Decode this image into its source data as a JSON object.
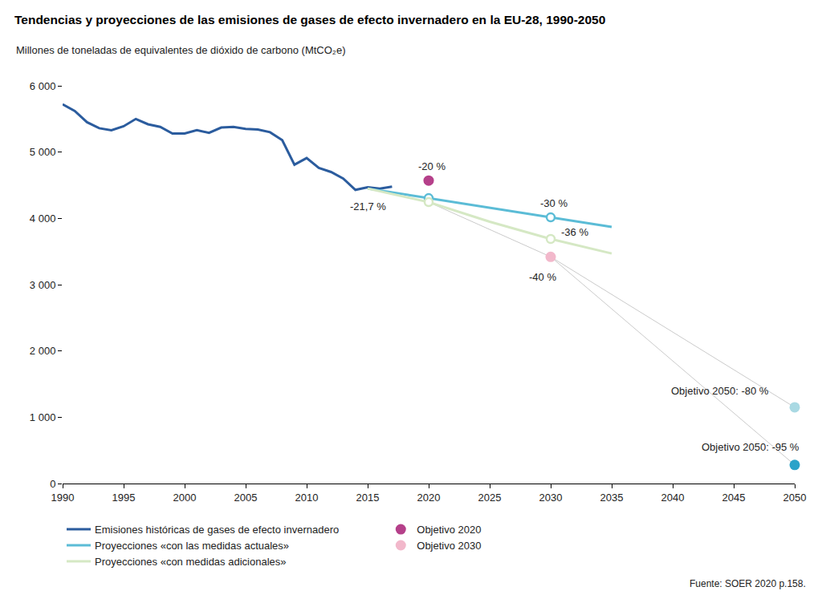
{
  "chart_data": {
    "type": "line",
    "title": "Tendencias y proyecciones de las emisiones de gases de efecto invernadero en la EU-28, 1990-2050",
    "subtitle": "Millones de toneladas de equivalentes de dióxido de carbono (MtCO₂e)",
    "source": "Fuente: SOER 2020 p.158.",
    "xlim": [
      1990,
      2050
    ],
    "xticks": [
      1990,
      1995,
      2000,
      2005,
      2010,
      2015,
      2020,
      2025,
      2030,
      2035,
      2040,
      2045,
      2050
    ],
    "ylim": [
      0,
      6000
    ],
    "yticks": [
      0,
      {
        "value": 1000,
        "label": "1 000"
      },
      {
        "value": 2000,
        "label": "2 000"
      },
      {
        "value": 3000,
        "label": "3 000"
      },
      {
        "value": 4000,
        "label": "4 000"
      },
      {
        "value": 5000,
        "label": "5 000"
      },
      {
        "value": 6000,
        "label": "6 000"
      }
    ],
    "grid": false,
    "legend": "bottom",
    "series": [
      {
        "name": "Emisiones históricas de gases de efecto invernadero",
        "type": "line",
        "color": "#2b5c9e",
        "x": [
          1990,
          1991,
          1992,
          1993,
          1994,
          1995,
          1996,
          1997,
          1998,
          1999,
          2000,
          2001,
          2002,
          2003,
          2004,
          2005,
          2006,
          2007,
          2008,
          2009,
          2010,
          2011,
          2012,
          2013,
          2014,
          2015,
          2016,
          2017
        ],
        "values": [
          5720,
          5620,
          5450,
          5360,
          5330,
          5390,
          5500,
          5420,
          5380,
          5280,
          5280,
          5330,
          5290,
          5370,
          5380,
          5350,
          5340,
          5300,
          5180,
          4810,
          4910,
          4760,
          4700,
          4600,
          4430,
          4470,
          4450,
          4480
        ]
      },
      {
        "name": "Proyecciones «con las medidas actuales»",
        "type": "line",
        "color": "#5bbcd6",
        "x": [
          2015,
          2020,
          2025,
          2030,
          2035
        ],
        "values": [
          4450,
          4305,
          4160,
          4015,
          3870
        ]
      },
      {
        "name": "Proyecciones «con medidas adicionales»",
        "type": "line",
        "color": "#d5e8c4",
        "x": [
          2015,
          2020,
          2025,
          2030,
          2035
        ],
        "values": [
          4450,
          4245,
          3950,
          3690,
          3470
        ]
      },
      {
        "name": "Objetivo 2020",
        "type": "scatter",
        "color": "#b5408a",
        "marker": "circle",
        "x": [
          2020
        ],
        "values": [
          4570
        ]
      },
      {
        "name": "Objetivo 2030",
        "type": "scatter",
        "color": "#f2b8cb",
        "marker": "circle",
        "x": [
          2030
        ],
        "values": [
          3420
        ]
      },
      {
        "type": "line",
        "color": "#c4c4c4",
        "x": [
          2020,
          2030,
          2050
        ],
        "values": [
          4245,
          3420,
          1150
        ]
      },
      {
        "type": "line",
        "color": "#c4c4c4",
        "x": [
          2030,
          2050
        ],
        "values": [
          3420,
          280
        ]
      }
    ],
    "markers": [
      {
        "x": 2020,
        "y": 4305,
        "color": "#5bbcd6",
        "marker": "open-circle"
      },
      {
        "x": 2030,
        "y": 4015,
        "color": "#5bbcd6",
        "marker": "open-circle"
      },
      {
        "x": 2020,
        "y": 4245,
        "color": "#d5e8c4",
        "marker": "open-circle"
      },
      {
        "x": 2030,
        "y": 3690,
        "color": "#d5e8c4",
        "marker": "open-circle"
      },
      {
        "x": 2050,
        "y": 1150,
        "color": "#a9d9e3",
        "marker": "circle"
      },
      {
        "x": 2050,
        "y": 280,
        "color": "#2aa3c9",
        "marker": "circle"
      }
    ],
    "annotations": [
      {
        "x": 2015,
        "y": 4450,
        "text": "-21,7 %"
      },
      {
        "x": 2020,
        "y": 4570,
        "text": "-20 %"
      },
      {
        "x": 2030,
        "y": 4015,
        "text": "-30 %"
      },
      {
        "x": 2030,
        "y": 3690,
        "text": "-36 %"
      },
      {
        "x": 2030,
        "y": 3420,
        "text": "-40 %"
      },
      {
        "x": 2050,
        "y": 1150,
        "text": "Objetivo 2050: -80 %"
      },
      {
        "x": 2050,
        "y": 280,
        "text": "Objetivo 2050: -95 %"
      }
    ]
  }
}
